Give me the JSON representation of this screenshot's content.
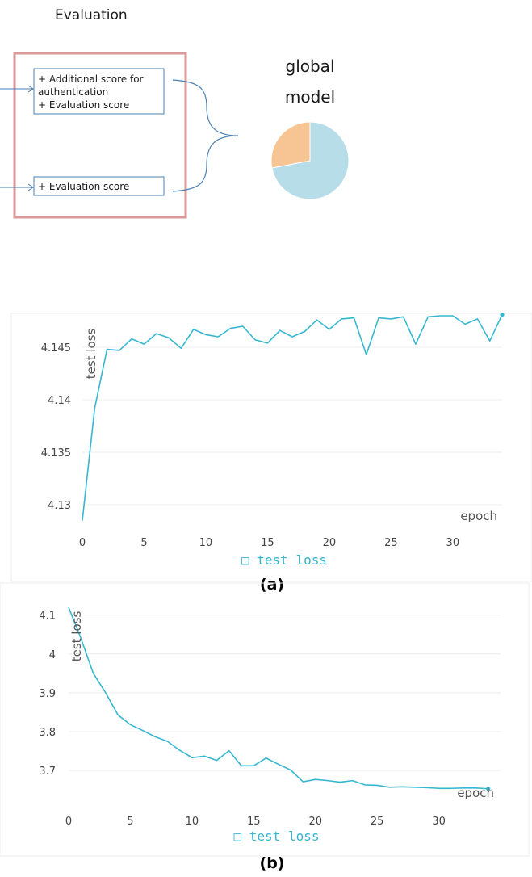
{
  "diagram": {
    "title": "Evaluation",
    "box1_lines": [
      "+ Additional score for",
      "authentication",
      "+ Evaluation score"
    ],
    "box2_line": "+ Evaluation score",
    "global_model_lines": [
      "global",
      "model"
    ],
    "pie": {
      "slices": [
        {
          "value": 0.72,
          "color": "#b7dde9"
        },
        {
          "value": 0.28,
          "color": "#f7c494"
        }
      ]
    },
    "frame_color": "#d99a9a",
    "box_border_color": "#4a7fb0"
  },
  "chart_data": [
    {
      "type": "line",
      "panel_label": "(a)",
      "ylabel": "test loss",
      "xlabel": "epoch",
      "legend": "test loss",
      "legend_marker": "□",
      "color": "#37b7cf",
      "xlim": [
        0,
        34
      ],
      "ylim": [
        4.128,
        4.148
      ],
      "x_ticks": [
        0,
        5,
        10,
        15,
        20,
        25,
        30
      ],
      "y_ticks": [
        "4.13",
        "4.135",
        "4.14",
        "4.145"
      ],
      "x": [
        0,
        1,
        2,
        3,
        4,
        5,
        6,
        7,
        8,
        9,
        10,
        11,
        12,
        13,
        14,
        15,
        16,
        17,
        18,
        19,
        20,
        21,
        22,
        23,
        24,
        25,
        26,
        27,
        28,
        29,
        30,
        31,
        32,
        33,
        34
      ],
      "y": [
        4.1285,
        4.1392,
        4.1448,
        4.1447,
        4.1458,
        4.1453,
        4.1463,
        4.1459,
        4.1449,
        4.1467,
        4.1462,
        4.146,
        4.1468,
        4.147,
        4.1457,
        4.1454,
        4.1466,
        4.146,
        4.1465,
        4.1476,
        4.1467,
        4.1477,
        4.1478,
        4.1443,
        4.1478,
        4.1477,
        4.1479,
        4.1453,
        4.1479,
        4.148,
        4.148,
        4.1472,
        4.1477,
        4.1456,
        4.1481
      ]
    },
    {
      "type": "line",
      "panel_label": "(b)",
      "ylabel": "test loss",
      "xlabel": "epoch",
      "legend": "test loss",
      "legend_marker": "□",
      "color": "#37b7cf",
      "xlim": [
        0,
        35
      ],
      "ylim": [
        3.64,
        4.12
      ],
      "x_ticks": [
        0,
        5,
        10,
        15,
        20,
        25,
        30
      ],
      "y_ticks": [
        "3.7",
        "3.8",
        "3.9",
        "4",
        "4.1"
      ],
      "x": [
        0,
        1,
        2,
        3,
        4,
        5,
        6,
        7,
        8,
        9,
        10,
        11,
        12,
        13,
        14,
        15,
        16,
        17,
        18,
        19,
        20,
        21,
        22,
        23,
        24,
        25,
        26,
        27,
        28,
        29,
        30,
        31,
        32,
        33,
        34
      ],
      "y": [
        4.12,
        4.04,
        3.95,
        3.9,
        3.843,
        3.818,
        3.803,
        3.787,
        3.775,
        3.752,
        3.733,
        3.737,
        3.726,
        3.751,
        3.712,
        3.712,
        3.732,
        3.716,
        3.701,
        3.671,
        3.677,
        3.674,
        3.67,
        3.674,
        3.663,
        3.662,
        3.657,
        3.658,
        3.657,
        3.656,
        3.654,
        3.654,
        3.655,
        3.655,
        3.653
      ]
    }
  ]
}
